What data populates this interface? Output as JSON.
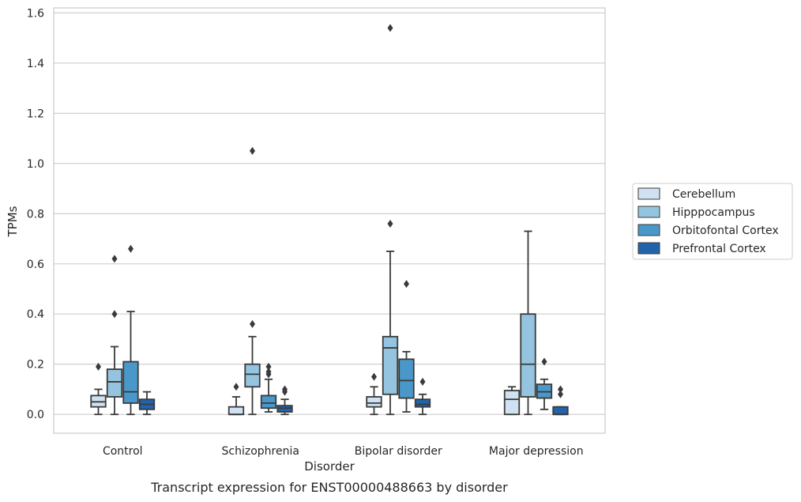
{
  "caption": "Transcript expression for ENST00000488663 by disorder",
  "chart_data": {
    "type": "box",
    "title": "",
    "xlabel": "Disorder",
    "ylabel": "TPMs",
    "ylim": [
      -0.075,
      1.62
    ],
    "yticks": [
      0.0,
      0.2,
      0.4,
      0.6,
      0.8,
      1.0,
      1.2,
      1.4,
      1.6
    ],
    "ytick_labels": [
      "0.0",
      "0.2",
      "0.4",
      "0.6",
      "0.8",
      "1.0",
      "1.2",
      "1.4",
      "1.6"
    ],
    "grid": "y",
    "legend_position": "right",
    "categories": [
      "Control",
      "Schizophrenia",
      "Bipolar disorder",
      "Major depression"
    ],
    "series": [
      {
        "name": "Cerebellum",
        "color": "#d0e1f2",
        "boxes": [
          {
            "whislo": 0.0,
            "q1": 0.03,
            "med": 0.05,
            "q3": 0.075,
            "whishi": 0.1,
            "fliers": [
              0.19
            ]
          },
          {
            "whislo": 0.0,
            "q1": 0.0,
            "med": 0.0,
            "q3": 0.03,
            "whishi": 0.07,
            "fliers": [
              0.11
            ]
          },
          {
            "whislo": 0.0,
            "q1": 0.03,
            "med": 0.045,
            "q3": 0.07,
            "whishi": 0.11,
            "fliers": [
              0.15
            ]
          },
          {
            "whislo": 0.0,
            "q1": 0.0,
            "med": 0.06,
            "q3": 0.095,
            "whishi": 0.11,
            "fliers": []
          }
        ]
      },
      {
        "name": "Hipppocampus",
        "color": "#94c4df",
        "boxes": [
          {
            "whislo": 0.0,
            "q1": 0.07,
            "med": 0.13,
            "q3": 0.18,
            "whishi": 0.27,
            "fliers": [
              0.4,
              0.62
            ]
          },
          {
            "whislo": 0.0,
            "q1": 0.11,
            "med": 0.16,
            "q3": 0.2,
            "whishi": 0.31,
            "fliers": [
              0.36,
              1.05
            ]
          },
          {
            "whislo": 0.0,
            "q1": 0.08,
            "med": 0.265,
            "q3": 0.31,
            "whishi": 0.65,
            "fliers": [
              0.76,
              1.54
            ]
          },
          {
            "whislo": 0.0,
            "q1": 0.07,
            "med": 0.2,
            "q3": 0.4,
            "whishi": 0.73,
            "fliers": []
          }
        ]
      },
      {
        "name": "Orbitofontal Cortex",
        "color": "#4a98c9",
        "boxes": [
          {
            "whislo": 0.0,
            "q1": 0.045,
            "med": 0.09,
            "q3": 0.21,
            "whishi": 0.41,
            "fliers": [
              0.66
            ]
          },
          {
            "whislo": 0.01,
            "q1": 0.025,
            "med": 0.045,
            "q3": 0.075,
            "whishi": 0.14,
            "fliers": [
              0.16,
              0.17,
              0.19
            ]
          },
          {
            "whislo": 0.01,
            "q1": 0.065,
            "med": 0.135,
            "q3": 0.22,
            "whishi": 0.25,
            "fliers": [
              0.52
            ]
          },
          {
            "whislo": 0.02,
            "q1": 0.065,
            "med": 0.09,
            "q3": 0.12,
            "whishi": 0.14,
            "fliers": [
              0.21
            ]
          }
        ]
      },
      {
        "name": "Prefrontal Cortex",
        "color": "#2264ab",
        "boxes": [
          {
            "whislo": 0.0,
            "q1": 0.02,
            "med": 0.04,
            "q3": 0.06,
            "whishi": 0.09,
            "fliers": []
          },
          {
            "whislo": 0.0,
            "q1": 0.01,
            "med": 0.025,
            "q3": 0.035,
            "whishi": 0.06,
            "fliers": [
              0.09,
              0.1
            ]
          },
          {
            "whislo": 0.0,
            "q1": 0.03,
            "med": 0.04,
            "q3": 0.06,
            "whishi": 0.08,
            "fliers": [
              0.13
            ]
          },
          {
            "whislo": 0.0,
            "q1": 0.0,
            "med": 0.0,
            "q3": 0.03,
            "whishi": 0.03,
            "fliers": [
              0.08,
              0.1
            ]
          }
        ]
      }
    ]
  }
}
